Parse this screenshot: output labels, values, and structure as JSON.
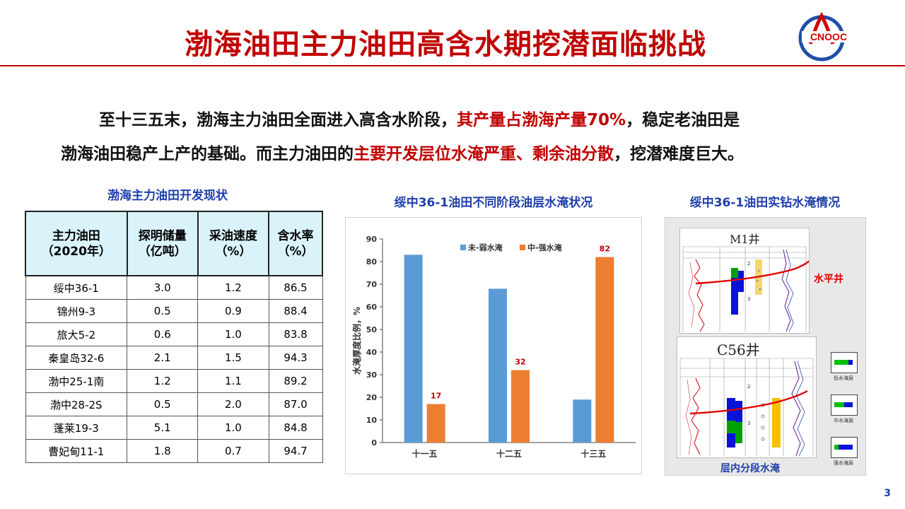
{
  "header": {
    "title": "渤海油田主力油田高含水期挖潜面临挑战",
    "logo_text": "CNOOC"
  },
  "intro": {
    "line1_a": "至十三五末，渤海主力油田全面进入高含水阶段，",
    "line1_hl": "其产量占渤海产量70%",
    "line1_b": "，稳定老油田是",
    "line2_a": "渤海油田稳产上产的基础。而主力油田的",
    "line2_hl": "主要开发层位水淹严重、剩余油分散",
    "line2_b": "，挖潜难度巨大。"
  },
  "table": {
    "caption": "渤海主力油田开发现状",
    "headers": [
      [
        "主力油田",
        "（2020年）"
      ],
      [
        "探明储量",
        "（亿吨）"
      ],
      [
        "采油速度",
        "（%）"
      ],
      [
        "含水率",
        "（%）"
      ]
    ],
    "rows": [
      [
        "绥中36-1",
        "3.0",
        "1.2",
        "86.5"
      ],
      [
        "锦州9-3",
        "0.5",
        "0.9",
        "88.4"
      ],
      [
        "旅大5-2",
        "0.6",
        "1.0",
        "83.8"
      ],
      [
        "秦皇岛32-6",
        "2.1",
        "1.5",
        "94.3"
      ],
      [
        "渤中25-1南",
        "1.2",
        "1.1",
        "89.2"
      ],
      [
        "渤中28-2S",
        "0.5",
        "2.0",
        "87.0"
      ],
      [
        "蓬莱19-3",
        "5.1",
        "1.0",
        "84.8"
      ],
      [
        "曹妃甸11-1",
        "1.8",
        "0.7",
        "94.7"
      ]
    ]
  },
  "chart_data": {
    "type": "bar",
    "title": "绥中36-1油田不同阶段油层水淹状况",
    "categories": [
      "十一五",
      "十二五",
      "十三五"
    ],
    "series": [
      {
        "name": "未-弱水淹",
        "color": "#5b9bd5",
        "values": [
          83,
          68,
          19
        ]
      },
      {
        "name": "中-强水淹",
        "color": "#ed7d31",
        "values": [
          17,
          32,
          82
        ]
      }
    ],
    "data_labels": {
      "series_index": 1,
      "color": "#c00000"
    },
    "ylabel": "水淹厚度比例，%",
    "xlabel": "",
    "ylim": [
      0,
      90
    ],
    "yticks": [
      0,
      10,
      20,
      30,
      40,
      50,
      60,
      70,
      80,
      90
    ],
    "legend": "top-center",
    "grid": false
  },
  "photo": {
    "caption": "绥中36-1油田实钻水淹情况",
    "well1": "M1井",
    "well2": "C56井",
    "horizontal_label": "水平井",
    "bottom_label": "层内分段水淹",
    "legend": [
      "低水淹层",
      "中水淹层",
      "强水淹层"
    ]
  },
  "page_number": "3"
}
